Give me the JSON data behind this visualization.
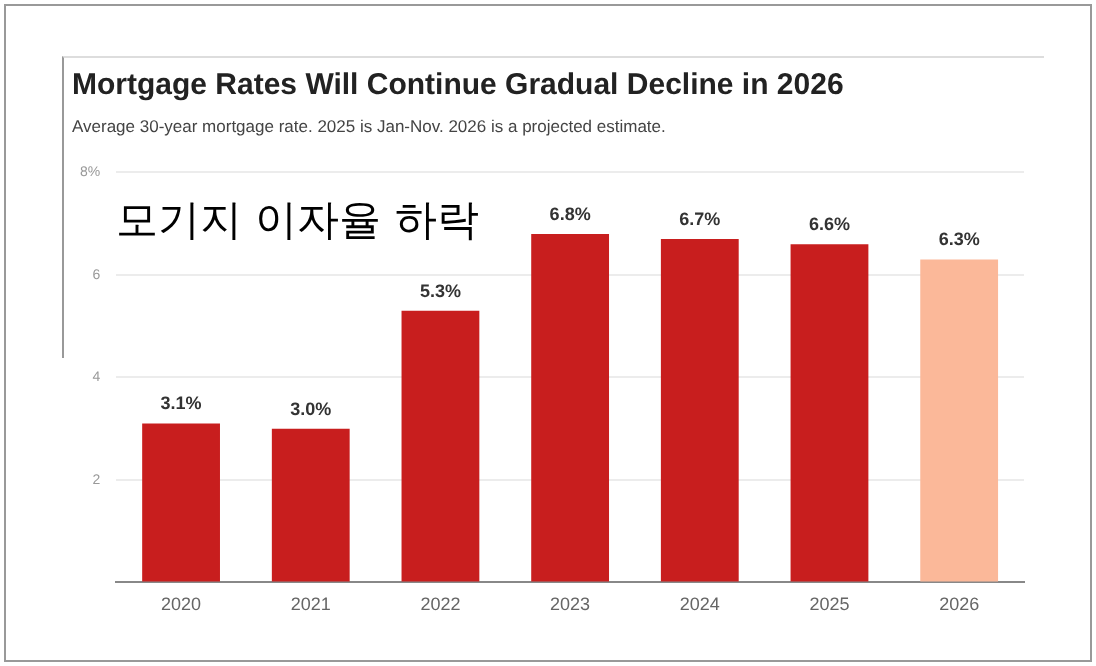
{
  "chart_data": {
    "type": "bar",
    "title": "Mortgage Rates Will Continue Gradual Decline in 2026",
    "subtitle": "Average 30-year mortgage rate. 2025 is Jan-Nov. 2026 is a projected estimate.",
    "annotations": [
      "모기지 이자율 하락"
    ],
    "categories": [
      "2020",
      "2021",
      "2022",
      "2023",
      "2024",
      "2025",
      "2026"
    ],
    "values": [
      3.1,
      3.0,
      5.3,
      6.8,
      6.7,
      6.6,
      6.3
    ],
    "colors": [
      "#c81e1e",
      "#c81e1e",
      "#c81e1e",
      "#c81e1e",
      "#c81e1e",
      "#c81e1e",
      "#fbb899"
    ],
    "value_labels": [
      "3.1%",
      "3.0%",
      "5.3%",
      "6.8%",
      "6.7%",
      "6.6%",
      "6.3%"
    ],
    "ylim": [
      0,
      8
    ],
    "yticks": [
      {
        "value": 0,
        "label": null
      },
      2,
      4,
      6,
      {
        "value": 8,
        "label": "8%"
      }
    ],
    "grid": "y"
  }
}
